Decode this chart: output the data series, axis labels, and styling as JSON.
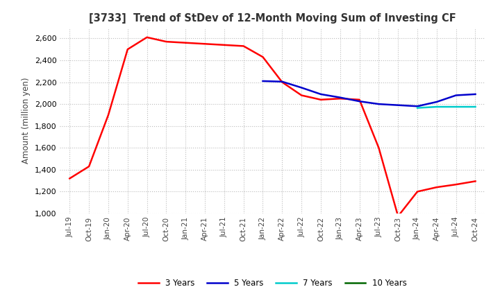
{
  "title": "[3733]  Trend of StDev of 12-Month Moving Sum of Investing CF",
  "ylabel": "Amount (million yen)",
  "background_color": "#ffffff",
  "grid_color": "#bbbbbb",
  "ylim": [
    1000,
    2700
  ],
  "yticks": [
    1000,
    1200,
    1400,
    1600,
    1800,
    2000,
    2200,
    2400,
    2600
  ],
  "x_labels": [
    "Jul-19",
    "Oct-19",
    "Jan-20",
    "Apr-20",
    "Jul-20",
    "Oct-20",
    "Jan-21",
    "Apr-21",
    "Jul-21",
    "Oct-21",
    "Jan-22",
    "Apr-22",
    "Jul-22",
    "Oct-22",
    "Jan-23",
    "Apr-23",
    "Jul-23",
    "Oct-23",
    "Jan-24",
    "Apr-24",
    "Jul-24",
    "Oct-24"
  ],
  "series": [
    {
      "name": "3 Years",
      "color": "#ff0000",
      "linewidth": 1.8,
      "values": [
        1320,
        1430,
        1900,
        2500,
        2610,
        2570,
        2560,
        2550,
        2540,
        2530,
        2430,
        2200,
        2080,
        2040,
        2050,
        2040,
        1600,
        975,
        1200,
        1240,
        1265,
        1295
      ]
    },
    {
      "name": "5 Years",
      "color": "#0000cc",
      "linewidth": 1.8,
      "values": [
        null,
        null,
        null,
        null,
        null,
        null,
        null,
        null,
        null,
        null,
        2210,
        2205,
        2150,
        2090,
        2060,
        2025,
        2000,
        1990,
        1980,
        2020,
        2080,
        2090
      ]
    },
    {
      "name": "7 Years",
      "color": "#00cccc",
      "linewidth": 1.8,
      "values": [
        null,
        null,
        null,
        null,
        null,
        null,
        null,
        null,
        null,
        null,
        null,
        null,
        null,
        null,
        null,
        null,
        null,
        null,
        1965,
        1975,
        1975,
        1975
      ]
    },
    {
      "name": "10 Years",
      "color": "#006600",
      "linewidth": 1.8,
      "values": [
        null,
        null,
        null,
        null,
        null,
        null,
        null,
        null,
        null,
        null,
        null,
        null,
        null,
        null,
        null,
        null,
        null,
        null,
        null,
        null,
        null,
        null
      ]
    }
  ]
}
